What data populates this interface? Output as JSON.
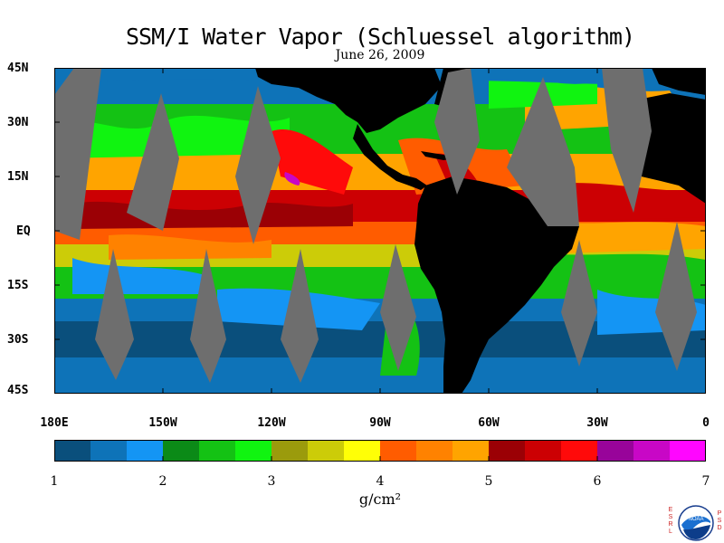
{
  "title": "SSM/I Water Vapor (Schluessel algorithm)",
  "date": "June 26, 2009",
  "lat_labels": [
    "45N",
    "30N",
    "15N",
    "EQ",
    "15S",
    "30S",
    "45S"
  ],
  "lon_labels": [
    "180E",
    "150W",
    "120W",
    "90W",
    "60W",
    "30W",
    "0"
  ],
  "colorbar": {
    "colors": [
      "#0a4f7c",
      "#0e73b8",
      "#1495f4",
      "#0b8a17",
      "#14c214",
      "#10f410",
      "#9b9b0c",
      "#cccc08",
      "#ffff06",
      "#ff5c00",
      "#ff8200",
      "#ffa400",
      "#9b0005",
      "#cc0003",
      "#ff0a0a",
      "#98049a",
      "#c807c6",
      "#ff06ff"
    ],
    "tick_labels": [
      "1",
      "2",
      "3",
      "4",
      "5",
      "6",
      "7"
    ],
    "units": "g/cm²"
  },
  "colors": {
    "land": "#000000",
    "no_data": "#6e6e6e"
  },
  "logo": {
    "left_text": "ESRL",
    "right_text": "PSD",
    "center_text": "NOAA"
  }
}
